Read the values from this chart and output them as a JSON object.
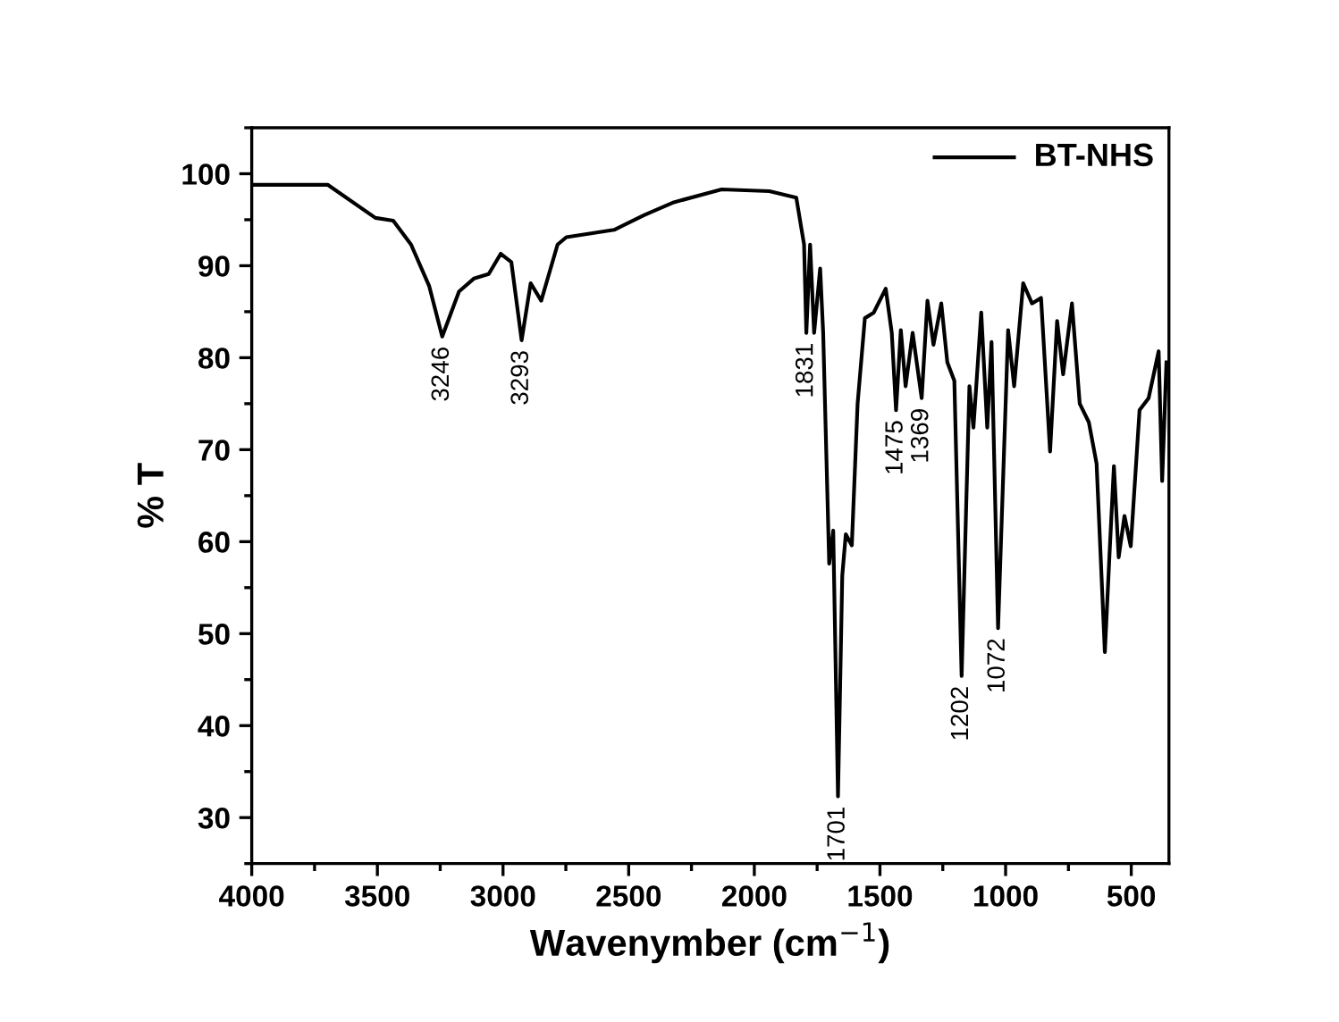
{
  "chart_data": {
    "type": "line",
    "xlabel": "Wavenymber (cm$^{−1}$)",
    "ylabel": "% T",
    "xlim": [
      4000,
      350
    ],
    "xticks": [
      4000,
      3500,
      3000,
      2500,
      2000,
      1500,
      1000,
      500
    ],
    "ylim": [
      25,
      105
    ],
    "yticks": [
      30,
      40,
      50,
      60,
      70,
      80,
      90,
      100
    ],
    "grid": false,
    "legend": "top right",
    "line_style": "solid",
    "marker": "none",
    "series": [
      {
        "name": "BT-NHS",
        "color": "#000000",
        "x": [
          4000,
          3698,
          3508,
          3437,
          3366,
          3294,
          3242,
          3175,
          3116,
          3057,
          3009,
          2967,
          2926,
          2890,
          2848,
          2783,
          2748,
          2558,
          2439,
          2320,
          2130,
          1940,
          1833,
          1802,
          1793,
          1778,
          1762,
          1738,
          1726,
          1702,
          1686,
          1667,
          1650,
          1636,
          1612,
          1589,
          1560,
          1525,
          1477,
          1453,
          1436,
          1417,
          1398,
          1370,
          1334,
          1311,
          1287,
          1256,
          1232,
          1204,
          1175,
          1144,
          1128,
          1097,
          1073,
          1056,
          1030,
          990,
          966,
          930,
          895,
          859,
          823,
          795,
          771,
          736,
          705,
          669,
          638,
          605,
          586,
          569,
          550,
          527,
          502,
          467,
          431,
          391,
          377,
          360
        ],
        "values": [
          98.8,
          98.8,
          95.2,
          94.9,
          92.3,
          87.8,
          82.3,
          87.2,
          88.6,
          89.1,
          91.3,
          90.4,
          81.9,
          88.1,
          86.2,
          92.3,
          93.1,
          93.9,
          95.5,
          96.9,
          98.3,
          98.1,
          97.4,
          92.3,
          82.7,
          92.3,
          82.7,
          89.7,
          82.7,
          57.6,
          61.2,
          32.3,
          56.3,
          60.8,
          59.6,
          75.0,
          84.3,
          84.9,
          87.5,
          82.7,
          74.3,
          83.0,
          76.9,
          82.7,
          75.6,
          86.2,
          81.4,
          85.9,
          79.5,
          77.5,
          45.4,
          76.9,
          72.4,
          84.9,
          72.4,
          81.7,
          50.6,
          83.0,
          76.9,
          88.1,
          85.9,
          86.5,
          69.8,
          84.0,
          78.2,
          85.9,
          75.0,
          73.0,
          68.5,
          48.0,
          58.9,
          68.2,
          58.3,
          62.8,
          59.5,
          74.3,
          75.6,
          80.7,
          66.6,
          79.5
        ]
      }
    ],
    "annotations": [
      {
        "text": "3246",
        "x": 3242,
        "y": 82.3
      },
      {
        "text": "3293",
        "x": 2926,
        "y": 81.9
      },
      {
        "text": "1831",
        "x": 1793,
        "y": 82.7
      },
      {
        "text": "1701",
        "x": 1667,
        "y": 32.3
      },
      {
        "text": "1475",
        "x": 1436,
        "y": 74.3
      },
      {
        "text": "1369",
        "x": 1334,
        "y": 75.6
      },
      {
        "text": "1202",
        "x": 1175,
        "y": 45.4
      },
      {
        "text": "1072",
        "x": 1030,
        "y": 50.6
      }
    ]
  }
}
